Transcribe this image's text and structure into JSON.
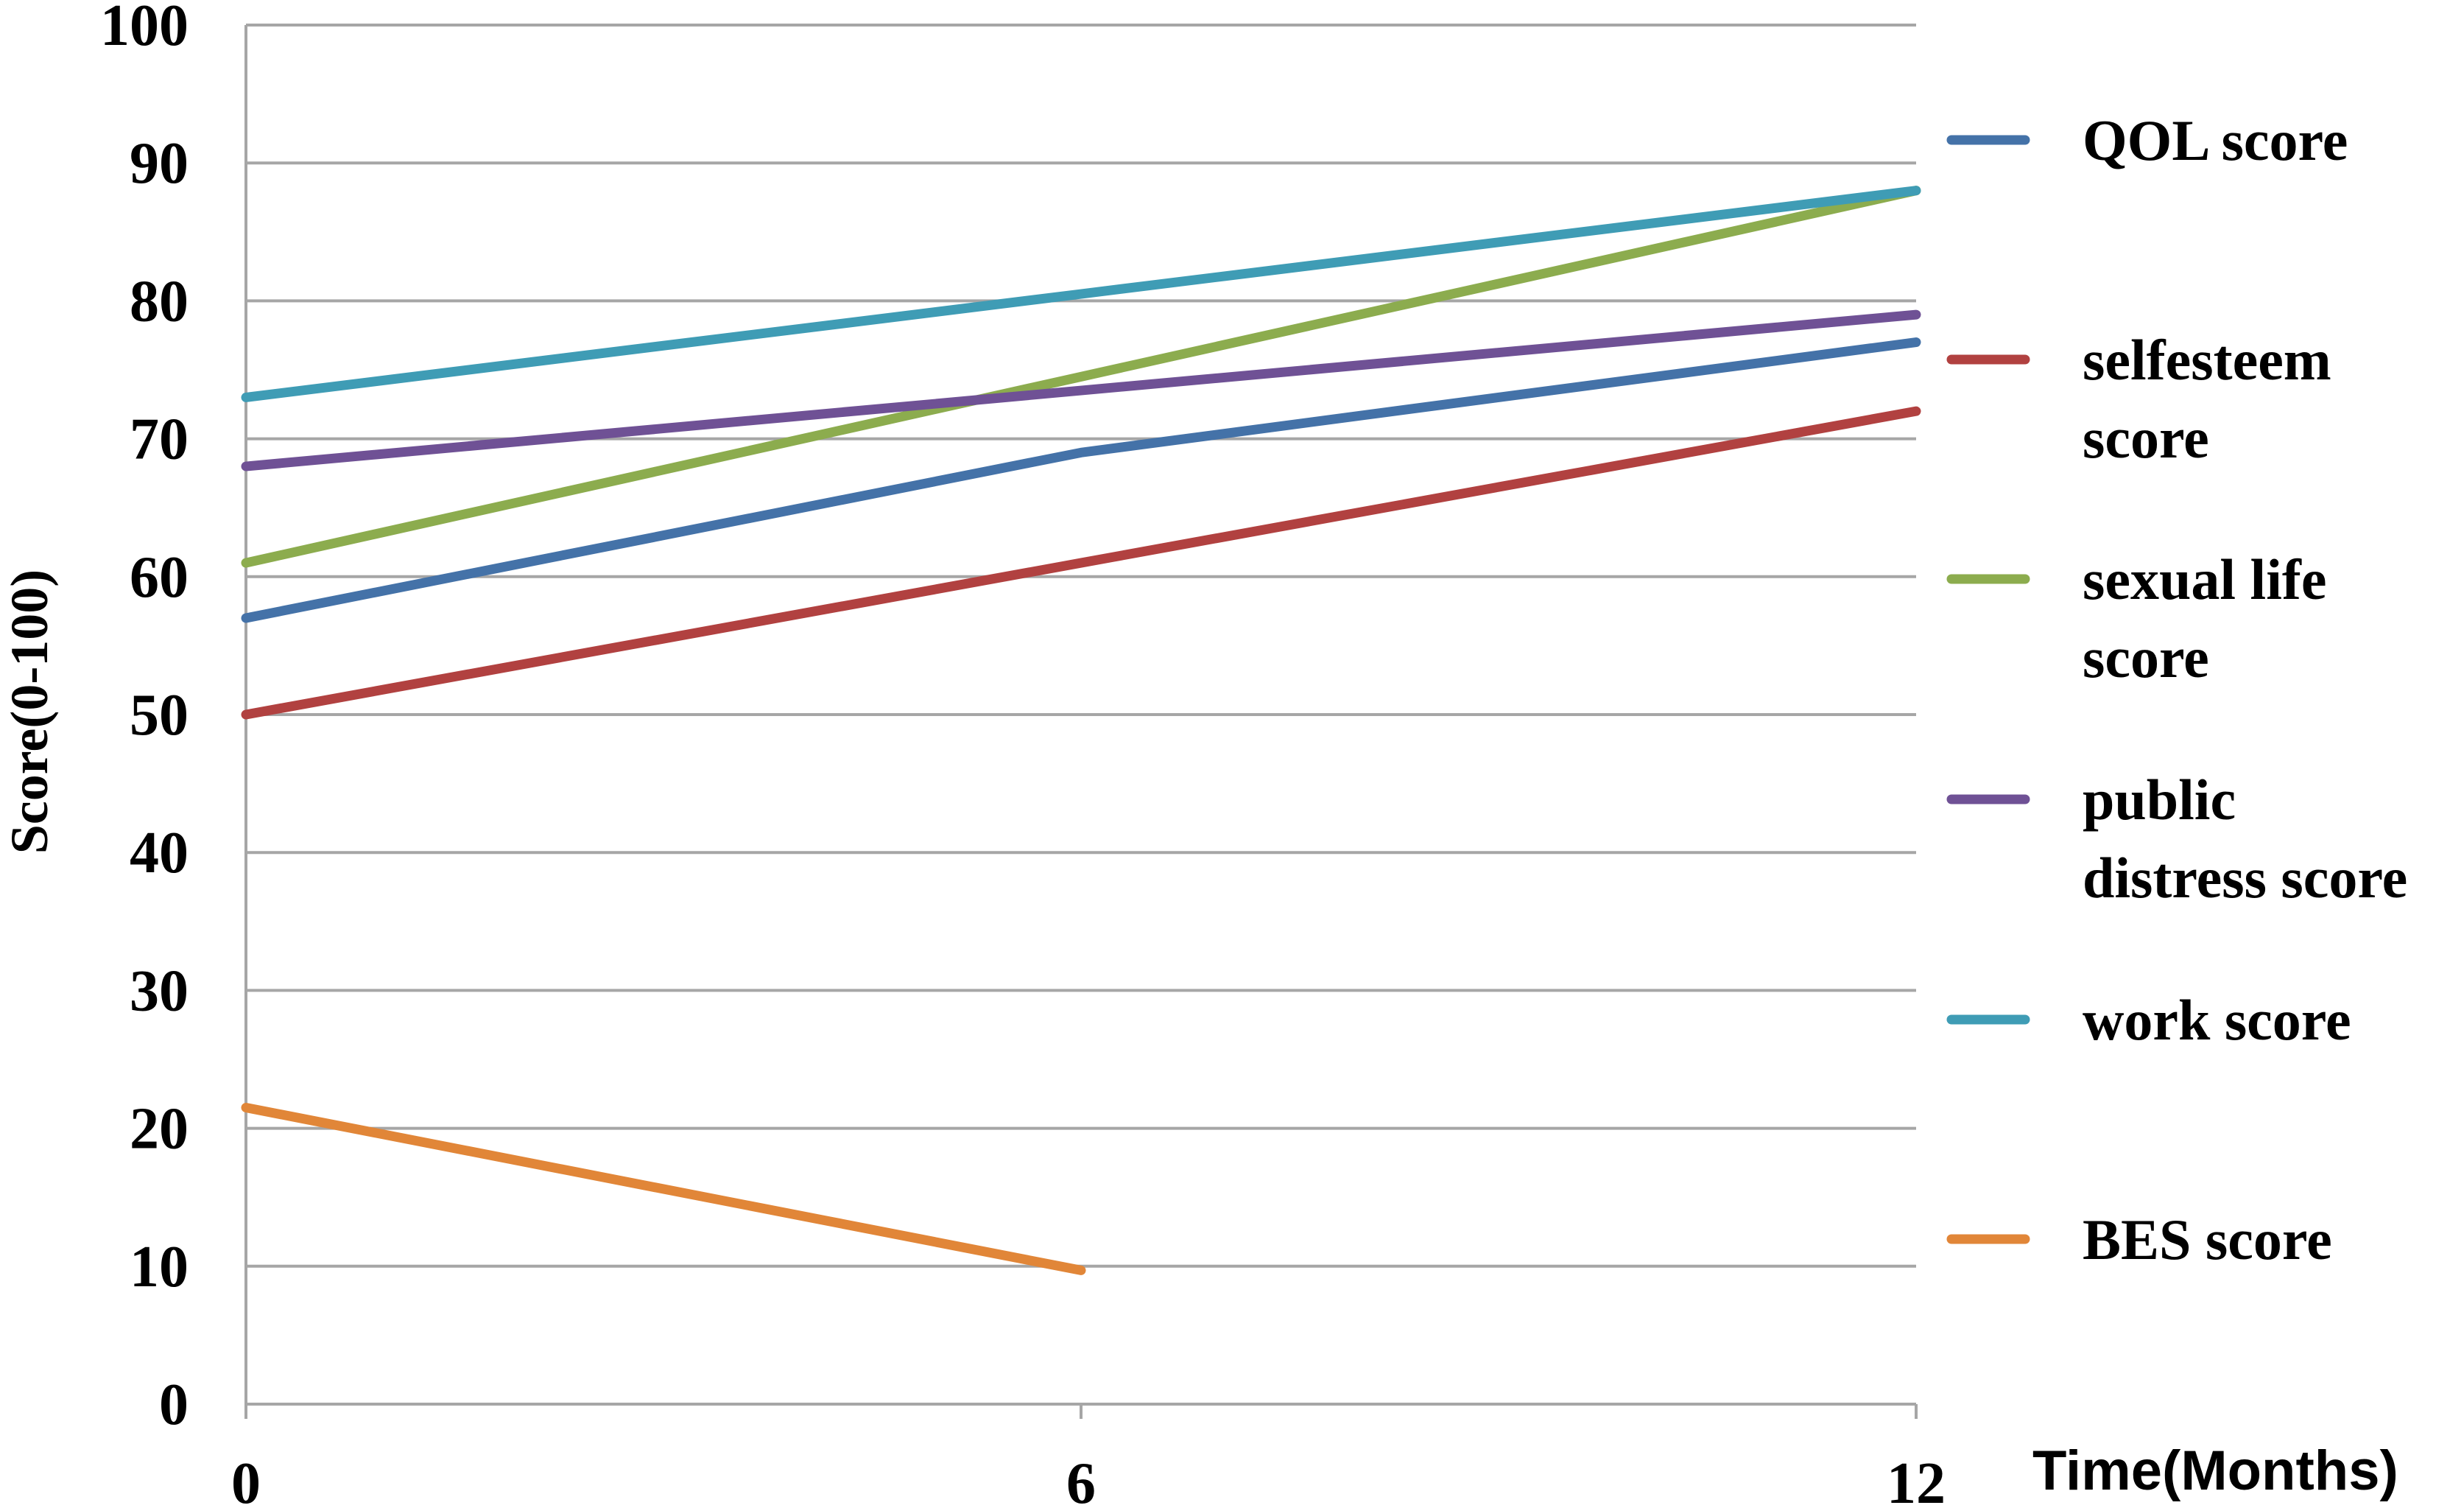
{
  "chart_data": {
    "type": "line",
    "x": [
      0,
      6,
      12
    ],
    "xlabel": "Time(Months)",
    "ylabel": "Score(0-100)",
    "ylim": [
      0,
      100
    ],
    "yticks": [
      0,
      10,
      20,
      30,
      40,
      50,
      60,
      70,
      80,
      90,
      100
    ],
    "xticks": [
      0,
      6,
      12
    ],
    "grid": true,
    "legend_position": "right",
    "series": [
      {
        "name": "QOL score",
        "color": "#4472a8",
        "points": [
          [
            0,
            57
          ],
          [
            6,
            69
          ],
          [
            12,
            77
          ]
        ],
        "legend_lines": [
          "QOL score"
        ]
      },
      {
        "name": "selfesteem score",
        "color": "#b14140",
        "points": [
          [
            0,
            50
          ],
          [
            6,
            61
          ],
          [
            12,
            72
          ]
        ],
        "legend_lines": [
          "selfesteem",
          "score"
        ]
      },
      {
        "name": "sexual life score",
        "color": "#8cac4e",
        "points": [
          [
            0,
            61
          ],
          [
            6,
            74.5
          ],
          [
            12,
            88
          ]
        ],
        "legend_lines": [
          "sexual life",
          "score"
        ]
      },
      {
        "name": "public distress score",
        "color": "#6f5195",
        "points": [
          [
            0,
            68
          ],
          [
            6,
            73.5
          ],
          [
            12,
            79
          ]
        ],
        "legend_lines": [
          "public",
          "distress score"
        ]
      },
      {
        "name": "work score",
        "color": "#3f9cb5",
        "points": [
          [
            0,
            73
          ],
          [
            6,
            80.5
          ],
          [
            12,
            88
          ]
        ],
        "legend_lines": [
          "work score"
        ]
      },
      {
        "name": "BES score",
        "color": "#e18638",
        "points": [
          [
            0,
            21.5
          ],
          [
            6,
            9.7
          ]
        ],
        "legend_lines": [
          "BES score"
        ]
      }
    ]
  }
}
